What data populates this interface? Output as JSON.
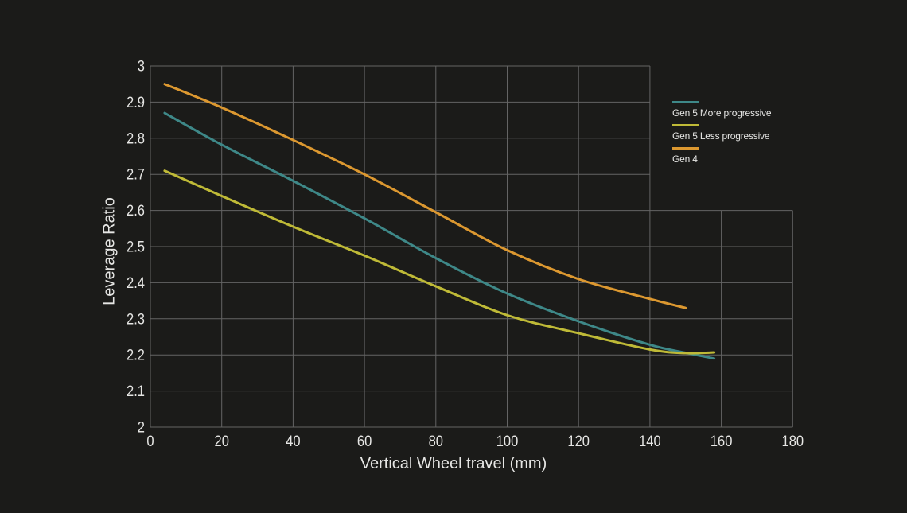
{
  "background": "#1b1b19",
  "grid_color": "#646464",
  "text_color": "#e6e6e4",
  "chart_data": {
    "type": "line",
    "title": "",
    "xlabel": "Vertical Wheel travel (mm)",
    "ylabel": "Leverage Ratio",
    "xlim": [
      0,
      180
    ],
    "ylim": [
      2,
      3
    ],
    "xticks": [
      0,
      20,
      40,
      60,
      80,
      100,
      120,
      140,
      160,
      180
    ],
    "yticks": [
      2,
      2.1,
      2.2,
      2.3,
      2.4,
      2.5,
      2.6,
      2.7,
      2.8,
      2.9,
      3
    ],
    "grid": true,
    "grid_cutout": {
      "x_from_mm": 140,
      "y_above": 2.6
    },
    "legend_position": "right-top",
    "series": [
      {
        "name": "Gen 5 More progressive",
        "color": "#3e8888",
        "x": [
          4,
          20,
          40,
          60,
          80,
          100,
          120,
          140,
          150,
          158
        ],
        "y": [
          2.87,
          2.782,
          2.682,
          2.578,
          2.468,
          2.37,
          2.293,
          2.228,
          2.206,
          2.19
        ]
      },
      {
        "name": "Gen 5 Less progressive",
        "color": "#bfba37",
        "x": [
          4,
          20,
          40,
          60,
          80,
          100,
          120,
          140,
          150,
          158
        ],
        "y": [
          2.71,
          2.64,
          2.555,
          2.475,
          2.39,
          2.31,
          2.26,
          2.215,
          2.205,
          2.207
        ]
      },
      {
        "name": "Gen 4",
        "color": "#dc9830",
        "x": [
          4,
          20,
          40,
          60,
          80,
          100,
          120,
          140,
          150
        ],
        "y": [
          2.95,
          2.885,
          2.795,
          2.7,
          2.595,
          2.49,
          2.41,
          2.355,
          2.33
        ]
      }
    ]
  }
}
